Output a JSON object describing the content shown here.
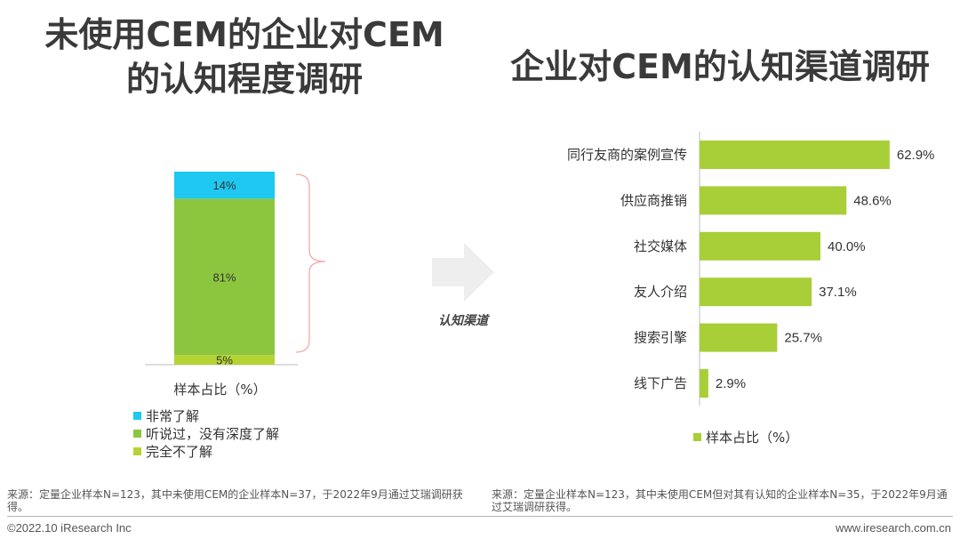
{
  "left": {
    "title": "未使用CEM的企业对CEM的认知程度调研",
    "title_line1": "未使用CEM的企业对CEM",
    "title_line2": "的认知程度调研",
    "xlabel": "样本占比（%）",
    "legend": [
      {
        "label": "非常了解",
        "color": "#1ec8f0"
      },
      {
        "label": "听说过，没有深度了解",
        "color": "#8cc63f"
      },
      {
        "label": "完全不了解",
        "color": "#b5d334"
      }
    ]
  },
  "right": {
    "title": "企业对CEM的认知渠道调研",
    "legend_label": "样本占比（%）",
    "bar_color": "#a8cf38"
  },
  "arrow_label": "认知渠道",
  "chart_data": [
    {
      "type": "bar",
      "stacked": true,
      "categories": [
        "样本占比（%）"
      ],
      "series": [
        {
          "name": "完全不了解",
          "values": [
            5
          ],
          "label": "5%",
          "color": "#b5d334"
        },
        {
          "name": "听说过，没有深度了解",
          "values": [
            81
          ],
          "label": "81%",
          "color": "#8cc63f"
        },
        {
          "name": "非常了解",
          "values": [
            14
          ],
          "label": "14%",
          "color": "#1ec8f0"
        }
      ],
      "ylim": [
        0,
        100
      ]
    },
    {
      "type": "bar",
      "orientation": "horizontal",
      "categories": [
        "同行友商的案例宣传",
        "供应商推销",
        "社交媒体",
        "友人介绍",
        "搜索引擎",
        "线下广告"
      ],
      "values": [
        62.9,
        48.6,
        40.0,
        37.1,
        25.7,
        2.9
      ],
      "value_labels": [
        "62.9%",
        "48.6%",
        "40.0%",
        "37.1%",
        "25.7%",
        "2.9%"
      ],
      "series_name": "样本占比（%）",
      "xlim": [
        0,
        100
      ]
    }
  ],
  "footer": {
    "source_left": "来源：定量企业样本N=123，其中未使用CEM的企业样本N=37，于2022年9月通过艾瑞调研获得。",
    "source_right": "来源：定量企业样本N=123，其中未使用CEM但对其有认知的企业样本N=35，于2022年9月通过艾瑞调研获得。",
    "copyright": "©2022.10 iResearch Inc",
    "website": "www.iresearch.com.cn"
  }
}
